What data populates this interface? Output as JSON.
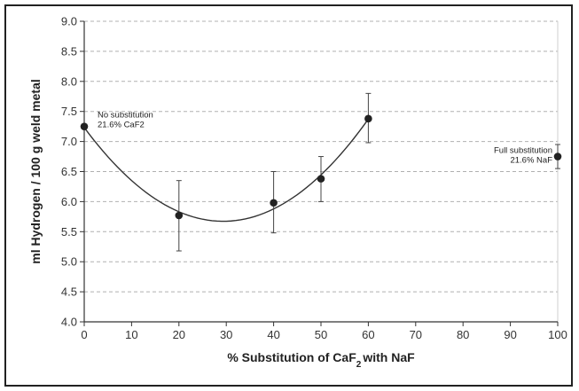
{
  "chart_data": {
    "type": "scatter",
    "xlabel_prefix": "% Substitution of CaF",
    "xlabel_sub": "2",
    "xlabel_suffix": "with NaF",
    "ylabel": "ml Hydrogen / 100 g weld metal",
    "xlim": [
      0,
      100
    ],
    "ylim": [
      4.0,
      9.0
    ],
    "x_ticks": [
      "0",
      "10",
      "20",
      "30",
      "40",
      "50",
      "60",
      "70",
      "80",
      "90",
      "100"
    ],
    "y_ticks": [
      "4.0",
      "4.5",
      "5.0",
      "5.5",
      "6.0",
      "6.5",
      "7.0",
      "7.5",
      "8.0",
      "8.5",
      "9.0"
    ],
    "grid": "horizontal dashed",
    "series": [
      {
        "points": [
          {
            "x": 0,
            "y": 7.25
          },
          {
            "x": 20,
            "y": 5.77,
            "err_low": 5.18,
            "err_high": 6.35
          },
          {
            "x": 40,
            "y": 5.98,
            "err_low": 5.48,
            "err_high": 6.5
          },
          {
            "x": 50,
            "y": 6.38,
            "err_low": 6.0,
            "err_high": 6.75
          },
          {
            "x": 60,
            "y": 7.38,
            "err_low": 6.98,
            "err_high": 7.8
          },
          {
            "x": 100,
            "y": 6.75,
            "err_low": 6.55,
            "err_high": 6.95
          }
        ]
      }
    ],
    "trend_curve": {
      "type": "quadratic",
      "x_range": [
        0,
        60
      ]
    },
    "annotations": [
      {
        "lines": [
          "No substitution",
          "21.6% CaF2"
        ],
        "near_x": 0
      },
      {
        "lines": [
          "Full substitution",
          "21.6% NaF"
        ],
        "near_x": 100
      }
    ],
    "colors": {
      "points": "#222222",
      "grid": "#b0b0b0",
      "curve": "#333333"
    }
  }
}
